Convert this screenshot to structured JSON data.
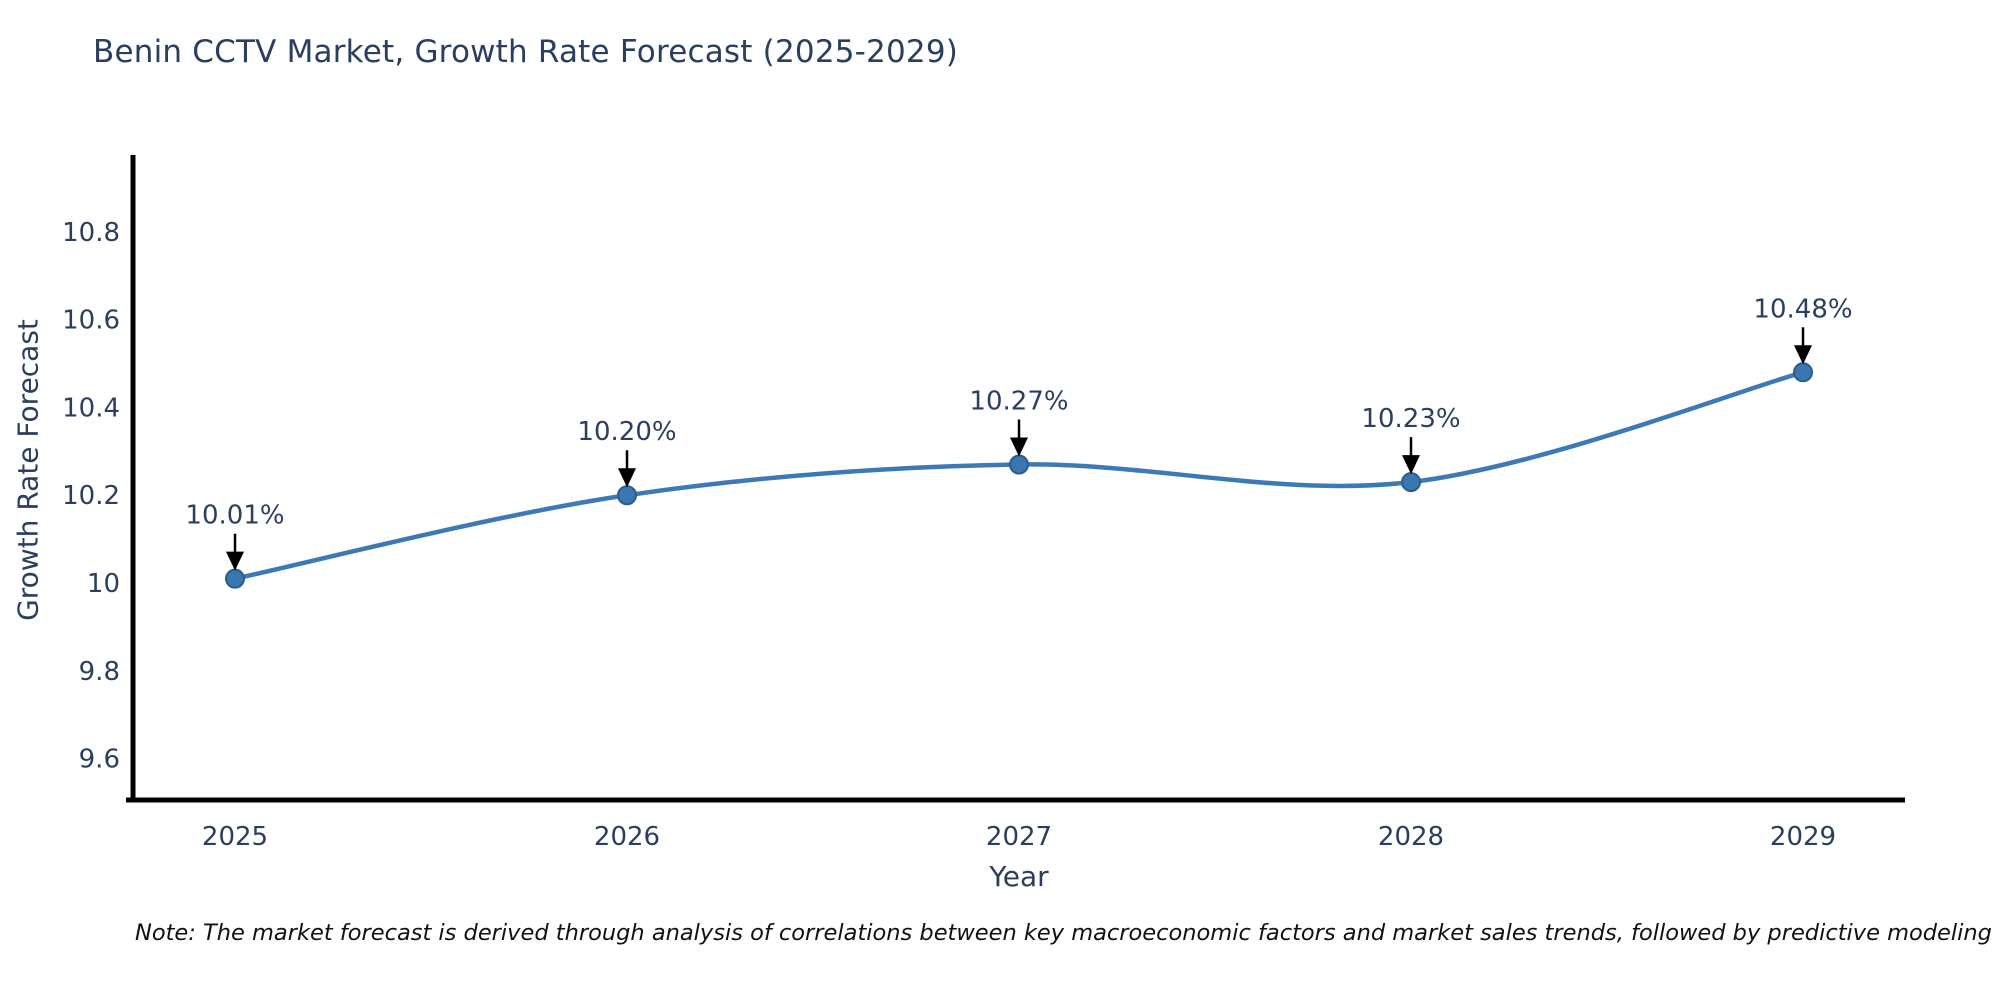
{
  "chart_data": {
    "type": "line",
    "title": "Benin CCTV Market, Growth Rate Forecast (2025-2029)",
    "xlabel": "Year",
    "ylabel": "Growth Rate Forecast",
    "x": [
      2025,
      2026,
      2027,
      2028,
      2029
    ],
    "x_tick_labels": [
      "2025",
      "2026",
      "2027",
      "2028",
      "2029"
    ],
    "series": [
      {
        "name": "Growth Rate Forecast",
        "values": [
          10.01,
          10.2,
          10.27,
          10.23,
          10.48
        ],
        "point_labels": [
          "10.01%",
          "10.20%",
          "10.27%",
          "10.23%",
          "10.48%"
        ]
      }
    ],
    "y_ticks": [
      9.6,
      9.8,
      10,
      10.2,
      10.4,
      10.6,
      10.8
    ],
    "y_tick_labels": [
      "9.6",
      "9.8",
      "10",
      "10.2",
      "10.4",
      "10.6",
      "10.8"
    ],
    "ylim": [
      9.506,
      10.968
    ],
    "grid": false,
    "legend": false,
    "line_shape": "spline",
    "colors": {
      "line": "#3d7ab5",
      "marker_fill": "#3a76b0",
      "marker_edge": "#2b5c8a",
      "axis": "#000000",
      "tick_text": "#2a3f5f",
      "annotation_text": "#2a3f5f",
      "annotation_arrow": "#000000",
      "background": "#ffffff"
    }
  },
  "note": "Note: The market forecast is derived through analysis of correlations between key macroeconomic factors and market sales trends, followed by predictive modeling to project future sal"
}
